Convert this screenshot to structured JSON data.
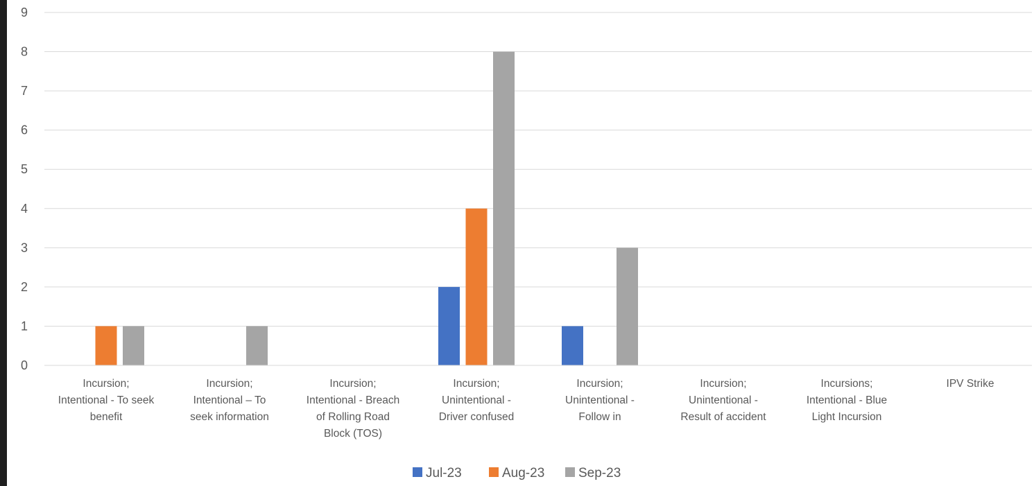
{
  "chart_data": {
    "type": "bar",
    "title": "",
    "xlabel": "",
    "ylabel": "",
    "ylim": [
      0,
      9
    ],
    "yticks": [
      "0",
      "1",
      "2",
      "3",
      "4",
      "5",
      "6",
      "7",
      "8",
      "9"
    ],
    "grid": true,
    "legend_position": "bottom-center",
    "categories": [
      [
        "Incursion;",
        "Intentional - To seek",
        "benefit"
      ],
      [
        "Incursion;",
        "Intentional – To",
        "seek information"
      ],
      [
        "Incursion;",
        "Intentional - Breach",
        "of Rolling Road",
        "Block (TOS)"
      ],
      [
        "Incursion;",
        "Unintentional -",
        "Driver confused"
      ],
      [
        "Incursion;",
        "Unintentional -",
        "Follow in"
      ],
      [
        "Incursion;",
        "Unintentional -",
        "Result of accident"
      ],
      [
        "Incursions;",
        "Intentional - Blue",
        "Light Incursion"
      ],
      [
        "IPV Strike"
      ]
    ],
    "series": [
      {
        "name": "Jul-23",
        "color": "#4472C4",
        "values": [
          0,
          0,
          0,
          2,
          1,
          0,
          0,
          0
        ]
      },
      {
        "name": "Aug-23",
        "color": "#ED7D31",
        "values": [
          1,
          0,
          0,
          4,
          0,
          0,
          0,
          0
        ]
      },
      {
        "name": "Sep-23",
        "color": "#A5A5A5",
        "values": [
          1,
          1,
          0,
          8,
          3,
          0,
          0,
          0
        ]
      }
    ]
  }
}
